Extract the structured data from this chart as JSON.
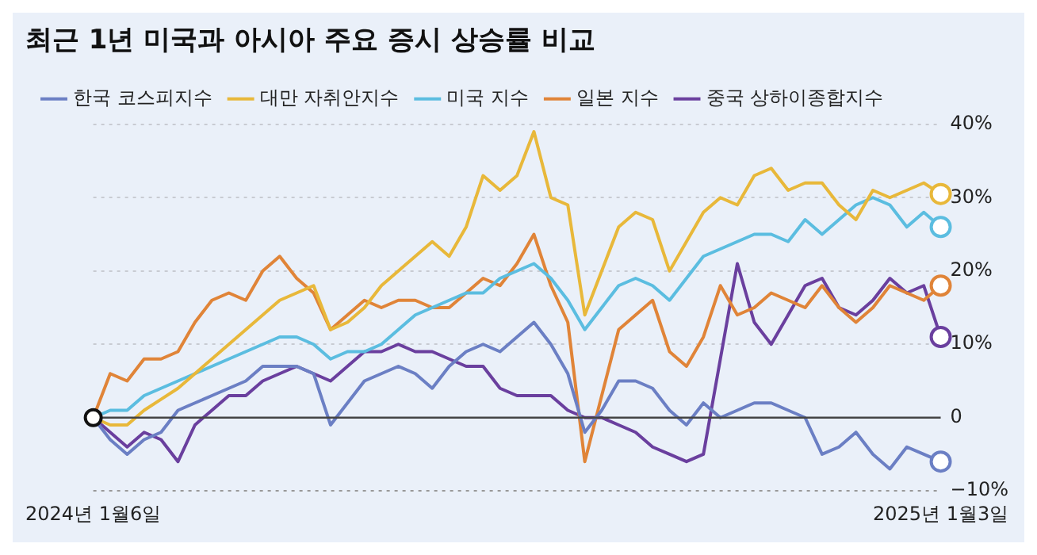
{
  "chart_data": {
    "type": "line",
    "title": "최근 1년 미국과 아시아 주요 증시 상승률 비교",
    "categories": [
      "2024년 1월6일",
      null,
      null,
      null,
      null,
      null,
      null,
      null,
      null,
      null,
      null,
      null,
      null,
      null,
      null,
      null,
      null,
      null,
      null,
      null,
      null,
      null,
      null,
      null,
      null,
      null,
      null,
      null,
      null,
      null,
      null,
      null,
      null,
      null,
      null,
      null,
      null,
      null,
      null,
      null,
      null,
      null,
      null,
      null,
      null,
      null,
      null,
      null,
      null,
      null,
      "2025년 1월3일"
    ],
    "series": [
      {
        "name": "한국 코스피지수",
        "color": "#6b7fc4",
        "values": [
          0,
          -3,
          -5,
          -3,
          -2,
          1,
          2,
          3,
          4,
          5,
          7,
          7,
          7,
          6,
          -1,
          2,
          5,
          6,
          7,
          6,
          4,
          7,
          9,
          10,
          9,
          11,
          13,
          10,
          6,
          -2,
          1,
          5,
          5,
          4,
          1,
          -1,
          2,
          0,
          1,
          2,
          2,
          1,
          0,
          -5,
          -4,
          -2,
          -5,
          -7,
          -4,
          -5,
          -6
        ]
      },
      {
        "name": "대만 자취안지수",
        "color": "#e8b83a",
        "values": [
          0,
          -1,
          -1,
          1,
          2.5,
          4,
          6,
          8,
          10,
          12,
          14,
          16,
          17,
          18,
          12,
          13,
          15,
          18,
          20,
          22,
          24,
          22,
          26,
          33,
          31,
          33,
          39,
          30,
          29,
          14,
          20,
          26,
          28,
          27,
          20,
          24,
          28,
          30,
          29,
          33,
          34,
          31,
          32,
          32,
          29,
          27,
          31,
          30,
          31,
          32,
          30.5
        ]
      },
      {
        "name": "미국 지수",
        "color": "#5bbde0",
        "values": [
          0,
          1,
          1,
          3,
          4,
          5,
          6,
          7,
          8,
          9,
          10,
          11,
          11,
          10,
          8,
          9,
          9,
          10,
          12,
          14,
          15,
          16,
          17,
          17,
          19,
          20,
          21,
          19,
          16,
          12,
          15,
          18,
          19,
          18,
          16,
          19,
          22,
          23,
          24,
          25,
          25,
          24,
          27,
          25,
          27,
          29,
          30,
          29,
          26,
          28,
          26
        ]
      },
      {
        "name": "일본 지수",
        "color": "#e08438",
        "values": [
          0,
          6,
          5,
          8,
          8,
          9,
          13,
          16,
          17,
          16,
          20,
          22,
          19,
          17,
          12,
          14,
          16,
          15,
          16,
          16,
          15,
          15,
          17,
          19,
          18,
          21,
          25,
          18,
          13,
          -6,
          3,
          12,
          14,
          16,
          9,
          7,
          11,
          18,
          14,
          15,
          17,
          16,
          15,
          18,
          15,
          13,
          15,
          18,
          17,
          16,
          18
        ]
      },
      {
        "name": "중국 상하이종합지수",
        "color": "#6a3f9e",
        "values": [
          0,
          -2,
          -4,
          -2,
          -3,
          -6,
          -1,
          1,
          3,
          3,
          5,
          6,
          7,
          6,
          5,
          7,
          9,
          9,
          10,
          9,
          9,
          8,
          7,
          7,
          4,
          3,
          3,
          3,
          1,
          0,
          0,
          -1,
          -2,
          -4,
          -5,
          -6,
          -5,
          8,
          21,
          13,
          10,
          14,
          18,
          19,
          15,
          14,
          16,
          19,
          17,
          18,
          11
        ]
      }
    ],
    "ylim": [
      -10,
      40
    ],
    "yticks": [
      {
        "value": 40,
        "label": "40%"
      },
      {
        "value": 30,
        "label": "30%"
      },
      {
        "value": 20,
        "label": "20%"
      },
      {
        "value": 10,
        "label": "10%"
      },
      0,
      {
        "value": -10,
        "label": "−10%"
      }
    ],
    "grid": "y",
    "legend": "top left",
    "line_style": "solid",
    "marker": "none"
  }
}
